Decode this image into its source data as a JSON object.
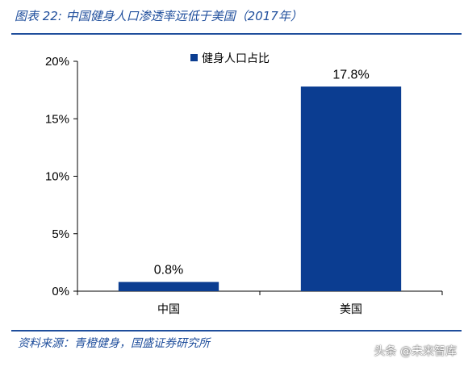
{
  "header": {
    "title": "图表 22:  中国健身人口渗透率远低于美国（2017年）"
  },
  "footer": {
    "source": "资料来源：青橙健身，国盛证券研究所",
    "watermark": "头条 @未来智库"
  },
  "colors": {
    "bar": "#0b3d91",
    "accent": "#1f4e9c"
  },
  "chart_data": {
    "type": "bar",
    "categories": [
      "中国",
      "美国"
    ],
    "series": [
      {
        "name": "健身人口占比",
        "values": [
          0.8,
          17.8
        ],
        "labels": [
          "0.8%",
          "17.8%"
        ]
      }
    ],
    "ylim": [
      0,
      20
    ],
    "yticks": [
      0,
      5,
      10,
      15,
      20
    ],
    "ytick_labels": [
      "0%",
      "5%",
      "10%",
      "15%",
      "20%"
    ],
    "legend": "top-center",
    "grid": false
  }
}
